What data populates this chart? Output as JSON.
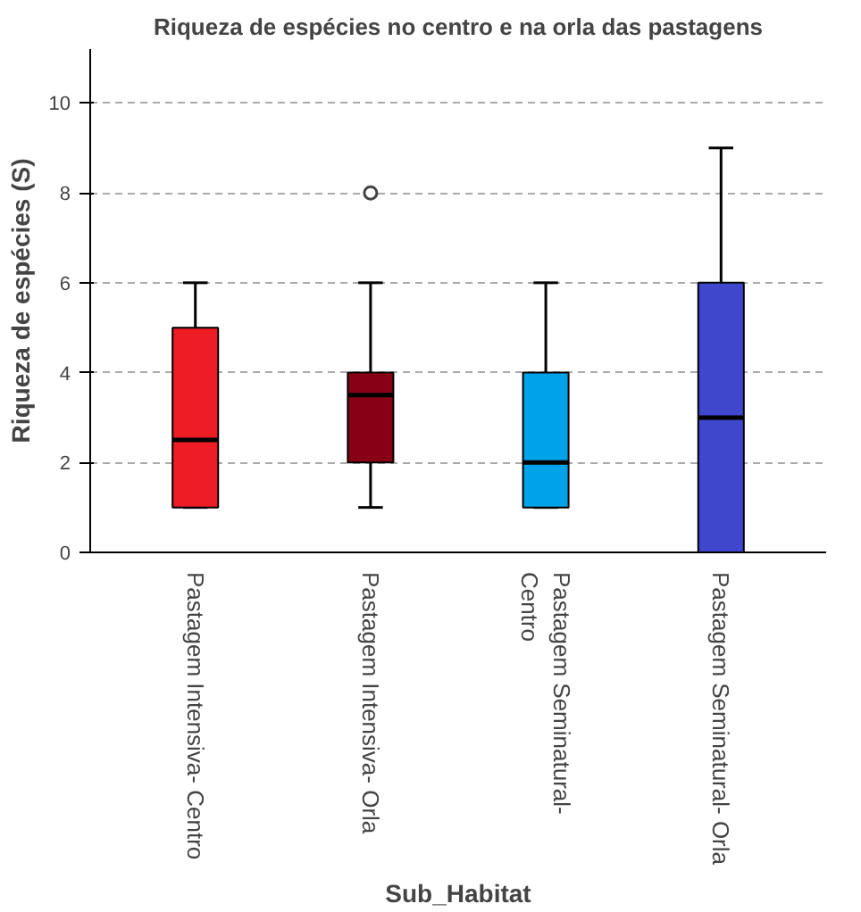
{
  "chart_data": {
    "type": "box",
    "title": "Riqueza de espécies no centro e na orla das pastagens",
    "xlabel": "Sub_Habitat",
    "ylabel": "Riqueza de espécies (S)",
    "categories": [
      "Pastagem Intensiva- Centro",
      "Pastagem Intensiva- Orla",
      "Pastagem Seminatural- Centro",
      "Pastagem Seminatural- Orla"
    ],
    "colors": [
      "#ee1c25",
      "#880015",
      "#00a2e8",
      "#3f48cc"
    ],
    "boxes": [
      {
        "low": 1,
        "q1": 1,
        "median": 2.5,
        "q3": 5,
        "high": 6
      },
      {
        "low": 1,
        "q1": 2,
        "median": 3.5,
        "q3": 4,
        "high": 6,
        "outliers": [
          8
        ]
      },
      {
        "low": 1,
        "q1": 1,
        "median": 2,
        "q3": 4,
        "high": 6
      },
      {
        "low": 0,
        "q1": 0,
        "median": 3,
        "q3": 6,
        "high": 9
      }
    ],
    "ylim": [
      0,
      11.2
    ],
    "yticks": [
      0,
      2,
      4,
      6,
      8,
      10
    ],
    "grid": "y"
  }
}
